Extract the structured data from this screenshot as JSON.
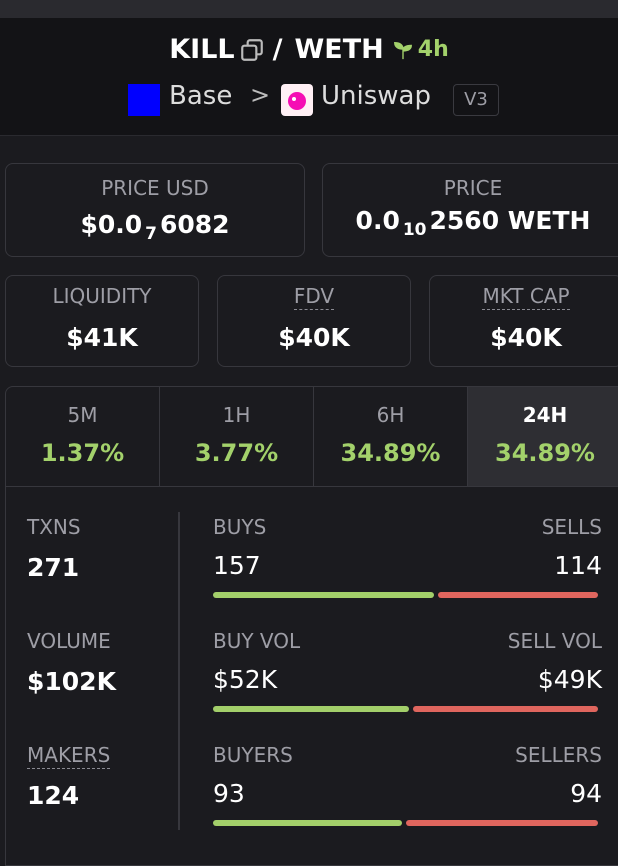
{
  "header": {
    "base_token": "KILL",
    "separator": "/",
    "quote_token": "WETH",
    "age": "4h",
    "chain": "Base",
    "chevron": ">",
    "dex": "Uniswap",
    "version": "V3"
  },
  "price_usd": {
    "label": "PRICE USD",
    "prefix": "$0.0",
    "zeros": "7",
    "digits": "6082"
  },
  "price": {
    "label": "PRICE",
    "prefix": "0.0",
    "zeros": "10",
    "digits": "2560 WETH"
  },
  "stats": [
    {
      "label": "LIQUIDITY",
      "value": "$41K"
    },
    {
      "label": "FDV",
      "value": "$40K"
    },
    {
      "label": "MKT CAP",
      "value": "$40K"
    }
  ],
  "timeframes": [
    {
      "label": "5M",
      "change": "1.37%"
    },
    {
      "label": "1H",
      "change": "3.77%"
    },
    {
      "label": "6H",
      "change": "34.89%"
    },
    {
      "label": "24H",
      "change": "34.89%"
    }
  ],
  "totals": [
    {
      "label": "TXNS",
      "value": 271
    },
    {
      "label": "VOLUME",
      "value": "$102K"
    },
    {
      "label": "MAKERS",
      "value": 124
    }
  ],
  "splits": [
    {
      "left_label": "BUYS",
      "left": {
        "value": 157,
        "label": "157"
      },
      "right_label": "SELLS",
      "right": {
        "value": 114,
        "label": "114"
      }
    },
    {
      "left_label": "BUY VOL",
      "left": {
        "value": 52000,
        "label": "$52K"
      },
      "right_label": "SELL VOL",
      "right": {
        "value": 49000,
        "label": "$49K"
      }
    },
    {
      "left_label": "BUYERS",
      "left": {
        "value": 93,
        "label": "93"
      },
      "right_label": "SELLERS",
      "right": {
        "value": 94,
        "label": "94"
      }
    }
  ]
}
